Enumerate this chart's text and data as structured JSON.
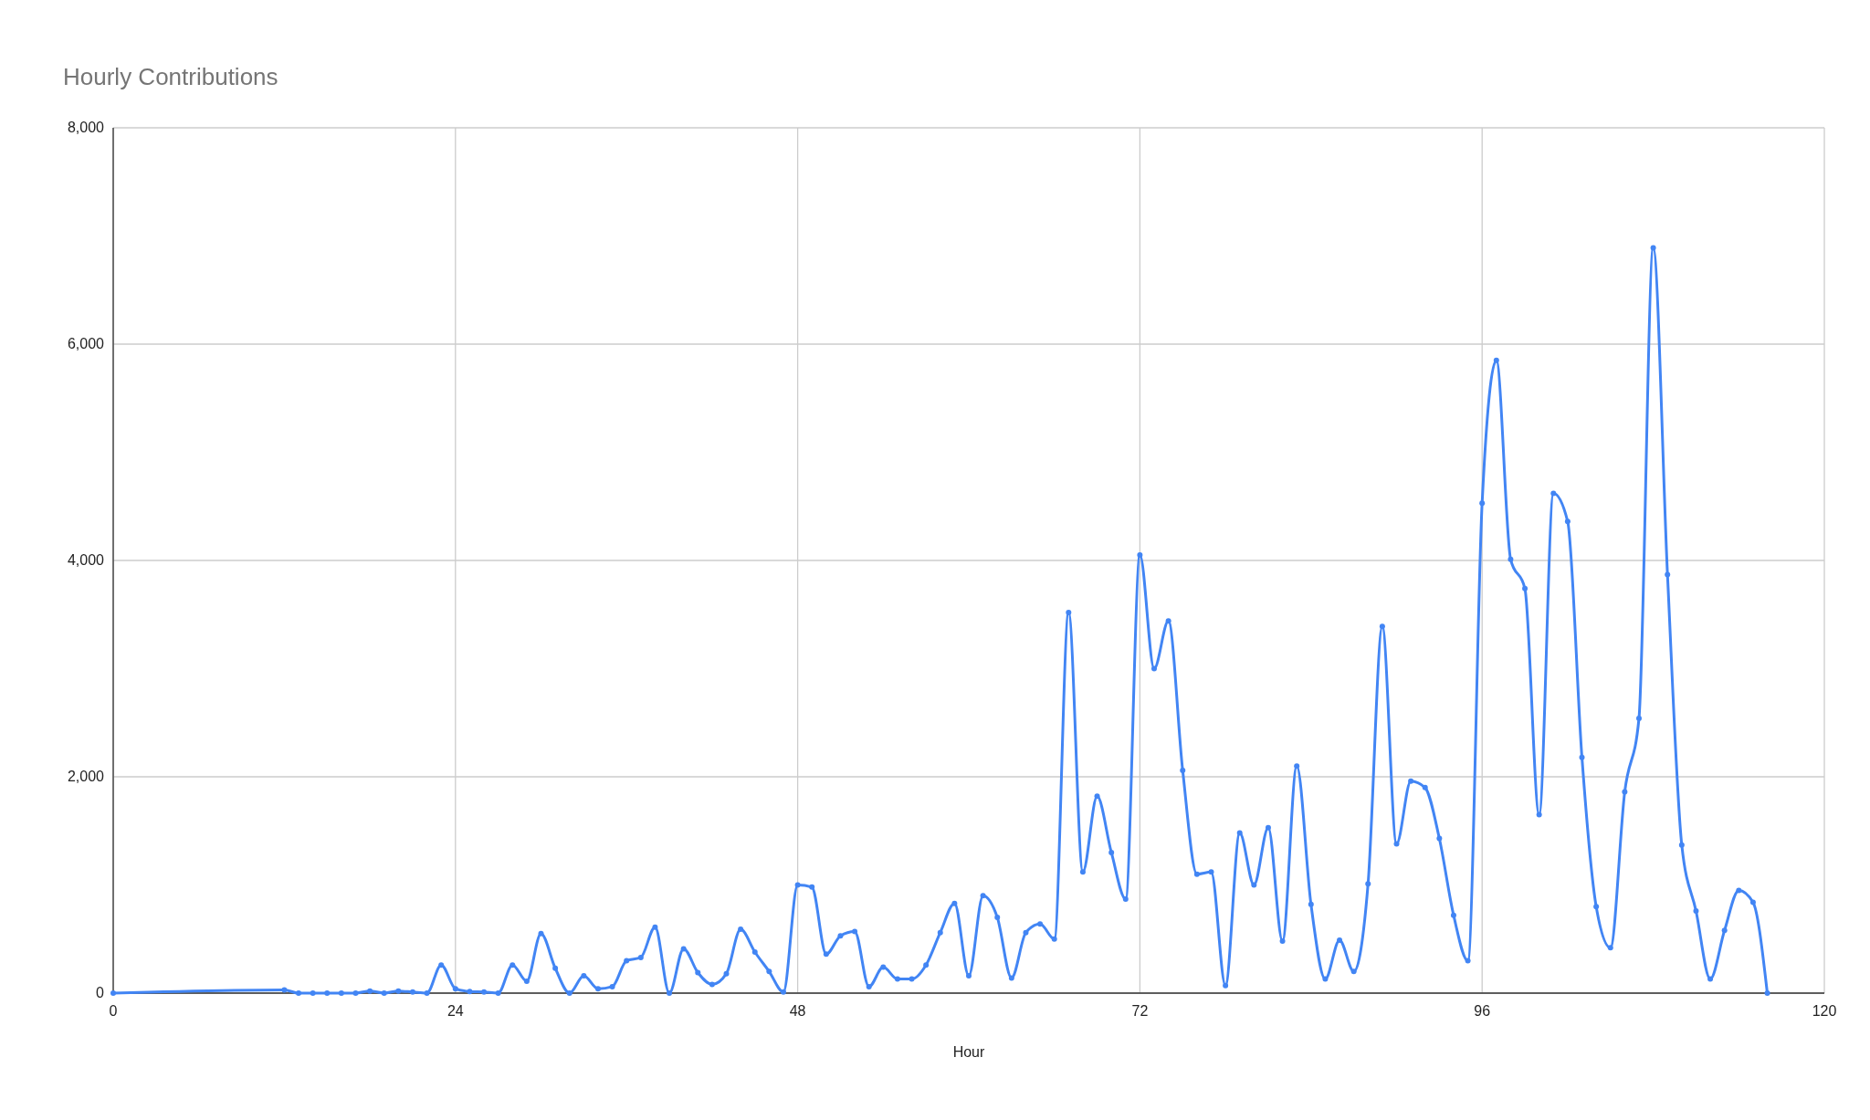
{
  "chart_data": {
    "type": "line",
    "title": "Hourly Contributions",
    "xlabel": "Hour",
    "x": [
      0,
      12,
      13,
      14,
      15,
      16,
      17,
      18,
      19,
      20,
      21,
      22,
      23,
      24,
      25,
      26,
      27,
      28,
      29,
      30,
      31,
      32,
      33,
      34,
      35,
      36,
      37,
      38,
      39,
      40,
      41,
      42,
      43,
      44,
      45,
      46,
      47,
      48,
      49,
      50,
      51,
      52,
      53,
      54,
      55,
      56,
      57,
      58,
      59,
      60,
      61,
      62,
      63,
      64,
      65,
      66,
      67,
      68,
      69,
      70,
      71,
      72,
      73,
      74,
      75,
      76,
      77,
      78,
      79,
      80,
      81,
      82,
      83,
      84,
      85,
      86,
      87,
      88,
      89,
      90,
      91,
      92,
      93,
      94,
      95,
      96,
      97,
      98,
      99,
      100,
      101,
      102,
      103,
      104,
      105,
      106,
      107,
      108,
      109,
      110,
      111,
      112,
      113,
      114,
      115,
      116
    ],
    "series": [
      {
        "color": "#4285f4",
        "values": [
          0,
          30,
          0,
          0,
          0,
          0,
          0,
          20,
          0,
          20,
          10,
          0,
          260,
          40,
          15,
          10,
          0,
          260,
          110,
          550,
          230,
          0,
          160,
          40,
          60,
          300,
          330,
          610,
          0,
          410,
          190,
          80,
          180,
          590,
          380,
          200,
          10,
          1000,
          980,
          360,
          530,
          570,
          60,
          240,
          130,
          130,
          260,
          560,
          830,
          160,
          900,
          700,
          140,
          560,
          640,
          500,
          3520,
          1120,
          1820,
          1300,
          870,
          4050,
          3000,
          3440,
          2060,
          1100,
          1120,
          70,
          1480,
          1000,
          1530,
          480,
          2100,
          820,
          130,
          490,
          200,
          1010,
          3390,
          1380,
          1960,
          1900,
          1430,
          720,
          300,
          4530,
          5850,
          4010,
          3740,
          1650,
          4620,
          4360,
          2180,
          800,
          420,
          1860,
          2540,
          6890,
          3870,
          1370,
          760,
          130,
          580,
          950,
          840,
          0
        ]
      }
    ],
    "xlim": [
      0,
      120
    ],
    "xticks": [
      0,
      24,
      48,
      72,
      96,
      120
    ],
    "ylim": [
      0,
      8000
    ],
    "yticks": [
      0,
      {
        "value": 2000,
        "label": "2,000"
      },
      {
        "value": 4000,
        "label": "4,000"
      },
      {
        "value": 6000,
        "label": "6,000"
      },
      {
        "value": 8000,
        "label": "8,000"
      }
    ],
    "grid": true,
    "marker": "circle",
    "line_style": "solid"
  }
}
